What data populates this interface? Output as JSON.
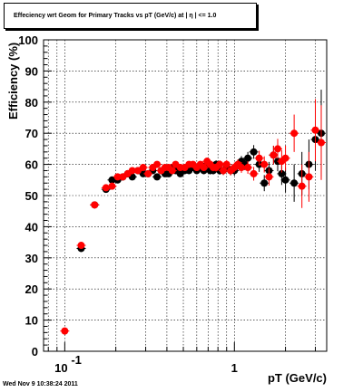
{
  "chart_data": {
    "type": "scatter",
    "title": "Effeciency wrt Geom for Primary Tracks vs pT (GeV/c) at | η | <= 1.0",
    "xlabel": "pT (GeV/c)",
    "ylabel": "Efficiency (%)",
    "xscale": "log",
    "xlim": [
      0.075,
      3.5
    ],
    "ylim": [
      0,
      100
    ],
    "grid": true,
    "x_tick_labels": [
      {
        "value": 0.1,
        "base": "10",
        "exp": "-1"
      },
      {
        "value": 1,
        "base": "1",
        "exp": ""
      }
    ],
    "y_tick_labels": [
      "0",
      "10",
      "20",
      "30",
      "40",
      "50",
      "60",
      "70",
      "80",
      "90",
      "100"
    ],
    "series": [
      {
        "color": "#000000",
        "x": [
          0.125,
          0.15,
          0.175,
          0.19,
          0.205,
          0.22,
          0.235,
          0.25,
          0.27,
          0.29,
          0.31,
          0.33,
          0.35,
          0.37,
          0.39,
          0.41,
          0.43,
          0.45,
          0.48,
          0.51,
          0.54,
          0.57,
          0.6,
          0.63,
          0.66,
          0.69,
          0.72,
          0.75,
          0.78,
          0.82,
          0.86,
          0.9,
          0.95,
          1.0,
          1.05,
          1.1,
          1.15,
          1.2,
          1.3,
          1.4,
          1.5,
          1.6,
          1.7,
          1.8,
          1.9,
          2.0,
          2.25,
          2.5,
          2.75,
          3.0,
          3.25
        ],
        "y": [
          33,
          47,
          52,
          55,
          55,
          56,
          57,
          56,
          58,
          57,
          57,
          58,
          56,
          58,
          57,
          57,
          59,
          58,
          57,
          58,
          58,
          59,
          58,
          59,
          58,
          60,
          58,
          58,
          60,
          58,
          58,
          59,
          58,
          58,
          60,
          61,
          60,
          62,
          64,
          60,
          54,
          58,
          63,
          61,
          57,
          55,
          54,
          57,
          60,
          68,
          70
        ],
        "yerr": [
          0.8,
          0.8,
          0.8,
          0.8,
          0.8,
          0.8,
          0.8,
          0.8,
          0.9,
          0.9,
          0.9,
          0.9,
          0.9,
          0.9,
          0.9,
          1.0,
          1.0,
          1.0,
          1.0,
          1.0,
          1.0,
          1.0,
          1.1,
          1.1,
          1.1,
          1.2,
          1.2,
          1.2,
          1.3,
          1.3,
          1.4,
          1.4,
          1.5,
          1.6,
          1.6,
          1.7,
          1.8,
          2.0,
          2.2,
          2.4,
          2.6,
          2.8,
          3.0,
          3.2,
          3.6,
          4.0,
          6.0,
          7.0,
          8.0,
          10.0,
          14.0
        ]
      },
      {
        "color": "#ff0000",
        "x": [
          0.1,
          0.125,
          0.15,
          0.175,
          0.19,
          0.205,
          0.22,
          0.235,
          0.25,
          0.27,
          0.29,
          0.31,
          0.33,
          0.35,
          0.37,
          0.39,
          0.41,
          0.43,
          0.45,
          0.48,
          0.51,
          0.54,
          0.57,
          0.6,
          0.63,
          0.66,
          0.69,
          0.72,
          0.75,
          0.78,
          0.82,
          0.86,
          0.9,
          0.95,
          1.0,
          1.05,
          1.1,
          1.2,
          1.3,
          1.4,
          1.5,
          1.6,
          1.7,
          1.8,
          1.9,
          2.0,
          2.25,
          2.5,
          2.75,
          3.0,
          3.25
        ],
        "y": [
          6.5,
          34,
          47,
          52.5,
          53,
          56,
          56,
          57,
          58,
          58,
          59,
          57,
          59,
          60,
          58,
          59,
          59,
          58,
          60,
          59,
          59,
          60,
          60,
          59,
          60,
          59,
          61,
          60,
          59,
          59,
          60,
          58,
          60,
          58,
          59,
          60,
          59,
          59,
          57,
          62,
          60,
          56,
          63,
          65,
          61,
          62,
          70,
          53,
          56,
          71,
          67
        ],
        "yerr": [
          0.5,
          0.8,
          0.8,
          0.8,
          0.8,
          0.8,
          0.8,
          0.8,
          0.8,
          0.9,
          0.9,
          0.9,
          0.9,
          0.9,
          0.9,
          0.9,
          1.0,
          1.0,
          1.0,
          1.0,
          1.0,
          1.0,
          1.0,
          1.1,
          1.1,
          1.1,
          1.2,
          1.2,
          1.2,
          1.3,
          1.3,
          1.4,
          1.4,
          1.5,
          1.6,
          1.6,
          1.7,
          2.0,
          2.2,
          2.4,
          2.6,
          2.8,
          3.0,
          3.2,
          3.6,
          4.0,
          6.0,
          7.0,
          8.0,
          10.0,
          12.0
        ]
      }
    ]
  },
  "footer": {
    "timestamp": "Wed Nov 9 10:38:24 2011"
  }
}
